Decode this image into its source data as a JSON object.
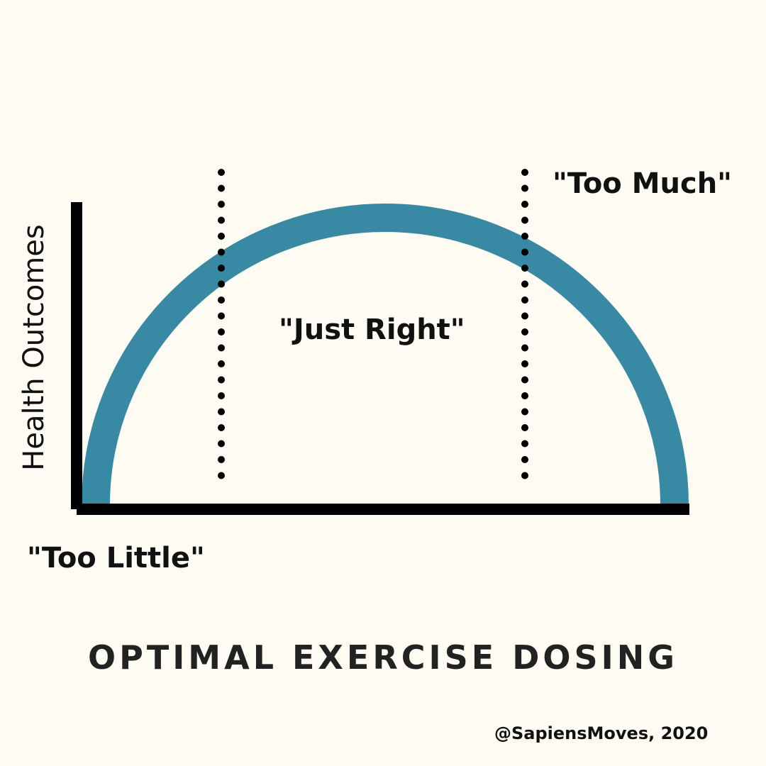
{
  "title": "OPTIMAL EXERCISE DOSING",
  "y_axis_label": "Health Outcomes",
  "zones": {
    "too_little": "\"Too Little\"",
    "just_right": "\"Just Right\"",
    "too_much": "\"Too Much\""
  },
  "credit": "@SapiensMoves, 2020",
  "colors": {
    "background": "#fdfbf2",
    "curve": "#3889a3",
    "axis": "#000000"
  }
}
